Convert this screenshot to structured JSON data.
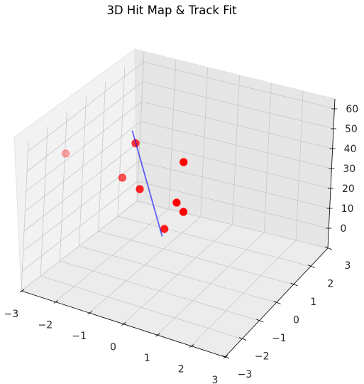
{
  "chart_data": {
    "type": "scatter3d",
    "title": "3D Hit Map & Track Fit",
    "xlabel": "",
    "ylabel": "",
    "zlabel": "",
    "xlim": [
      -3,
      3
    ],
    "ylim": [
      -3,
      3
    ],
    "zlim": [
      -10,
      65
    ],
    "x_ticks": [
      "−3",
      "−2",
      "−1",
      "0",
      "1",
      "2",
      "3"
    ],
    "y_ticks": [
      "−3",
      "−2",
      "−1",
      "0",
      "1",
      "2",
      "3"
    ],
    "z_ticks": [
      "0",
      "10",
      "20",
      "30",
      "40",
      "50",
      "60"
    ],
    "x_tick_values": [
      -3,
      -2,
      -1,
      0,
      1,
      2,
      3
    ],
    "y_tick_values": [
      -3,
      -2,
      -1,
      0,
      1,
      2,
      3
    ],
    "z_tick_values": [
      0,
      10,
      20,
      30,
      40,
      50,
      60
    ],
    "grid": true,
    "hits": {
      "color": "#ff0000",
      "points": [
        {
          "x": -1.0,
          "y": 1.0,
          "z": 0
        },
        {
          "x": -0.5,
          "y": 1.1,
          "z": 10
        },
        {
          "x": -0.4,
          "y": 0.5,
          "z": 20
        },
        {
          "x": -1.8,
          "y": 0.0,
          "z": 30
        },
        {
          "x": -1.1,
          "y": -0.3,
          "z": 30
        },
        {
          "x": -0.3,
          "y": 0.6,
          "z": 40
        },
        {
          "x": -1.4,
          "y": -0.1,
          "z": 50
        },
        {
          "x": -3.2,
          "y": -0.6,
          "z": 40
        }
      ]
    },
    "track": {
      "color": "#0000ff",
      "start": {
        "x": -1.0,
        "y": 0.9,
        "z": -3
      },
      "end": {
        "x": -1.3,
        "y": -0.5,
        "z": 60
      }
    }
  }
}
